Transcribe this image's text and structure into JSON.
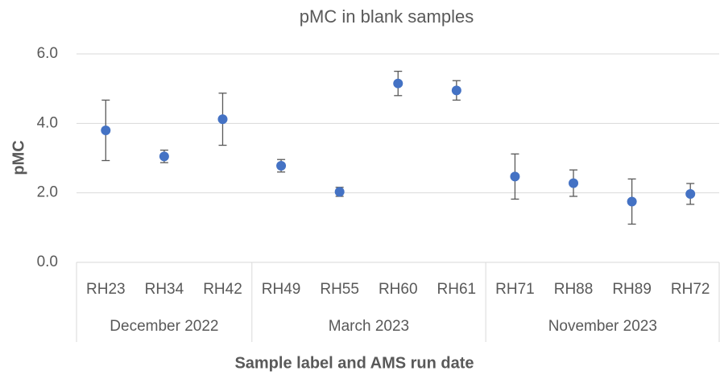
{
  "chart_data": {
    "type": "errorbar",
    "title": "pMC in blank samples",
    "y_label": "pMC",
    "x_label": "Sample label and AMS run date",
    "groups": [
      {
        "label": "December 2022",
        "categories": [
          "RH23",
          "RH34",
          "RH42"
        ]
      },
      {
        "label": "March 2023",
        "categories": [
          "RH49",
          "RH55",
          "RH60",
          "RH61"
        ]
      },
      {
        "label": "November 2023",
        "categories": [
          "RH71",
          "RH88",
          "RH89",
          "RH72"
        ]
      }
    ],
    "values": [
      3.8,
      3.05,
      4.12,
      2.78,
      2.03,
      5.15,
      4.95,
      2.47,
      2.28,
      1.75,
      1.97
    ],
    "errors": [
      0.87,
      0.18,
      0.75,
      0.18,
      0.13,
      0.35,
      0.28,
      0.65,
      0.38,
      0.65,
      0.3
    ],
    "color": "#4472c4",
    "ylim": [
      0,
      6
    ],
    "yticks": [
      {
        "value": 0,
        "label": "0.0"
      },
      {
        "value": 2,
        "label": "2.0"
      },
      {
        "value": 4,
        "label": "4.0"
      },
      {
        "value": 6,
        "label": "6.0"
      }
    ],
    "grid": true
  }
}
